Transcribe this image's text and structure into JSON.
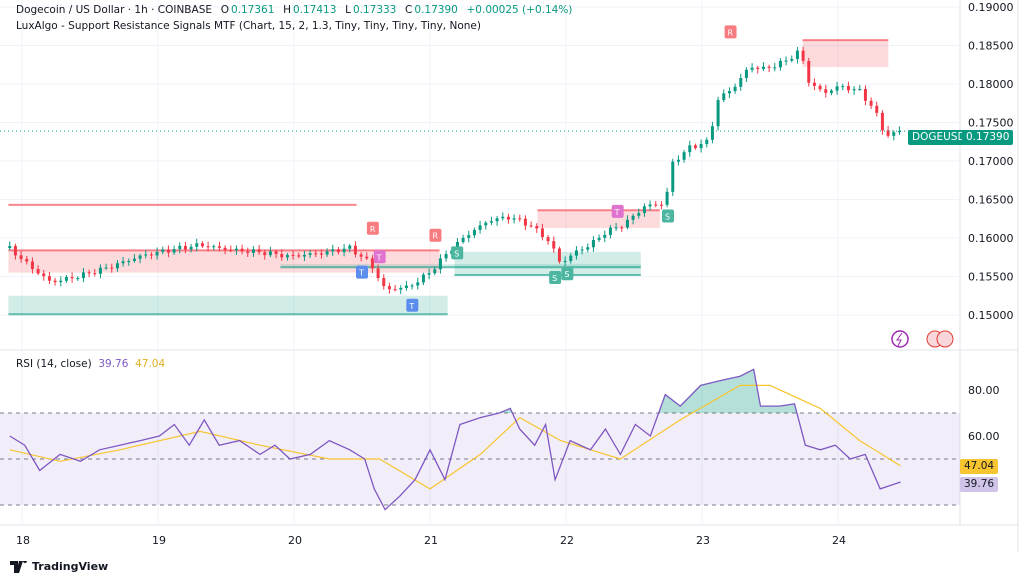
{
  "header": {
    "symbol_title": "Dogecoin / US Dollar · 1h · COINBASE",
    "open_label": "O",
    "open": "0.17361",
    "high_label": "H",
    "high": "0.17413",
    "low_label": "L",
    "low": "0.17333",
    "close_label": "C",
    "close": "0.17390",
    "change": "+0.00025 (+0.14%)",
    "indicator": "LuxAlgo - Support Resistance Signals MTF (Chart, 15, 2, 1.3, Tiny, Tiny, Tiny, Tiny, None)"
  },
  "price_tag": {
    "symbol": "DOGEUSD",
    "price": "0.17390"
  },
  "rsi": {
    "title": "RSI (14, close)",
    "value": "39.76",
    "ma_value": "47.04"
  },
  "branding": {
    "name": "TradingView"
  },
  "colors": {
    "up": "#089981",
    "down": "#f23645",
    "rsi": "#7e57c2",
    "rsi_ma": "#f7c530",
    "resistance": "#f23645",
    "support": "#089981"
  },
  "chart_data": [
    {
      "type": "candlestick",
      "title": "Dogecoin / US Dollar · 1h · COINBASE",
      "x_ticks": [
        "18",
        "19",
        "20",
        "21",
        "22",
        "23",
        "24"
      ],
      "y_ticks": [
        "0.15000",
        "0.15500",
        "0.16000",
        "0.16500",
        "0.17000",
        "0.17500",
        "0.18000",
        "0.18500",
        "0.19000"
      ],
      "ylim": [
        0.146,
        0.19
      ],
      "grid": true,
      "close_path": [
        [
          17.91,
          0.1587
        ],
        [
          18.06,
          0.1565
        ],
        [
          18.21,
          0.1545
        ],
        [
          18.43,
          0.1552
        ],
        [
          18.65,
          0.1561
        ],
        [
          18.87,
          0.1574
        ],
        [
          19.09,
          0.1584
        ],
        [
          19.31,
          0.1593
        ],
        [
          19.53,
          0.1587
        ],
        [
          19.75,
          0.1582
        ],
        [
          19.97,
          0.1574
        ],
        [
          20.19,
          0.1578
        ],
        [
          20.41,
          0.1587
        ],
        [
          20.56,
          0.1569
        ],
        [
          20.67,
          0.1535
        ],
        [
          20.85,
          0.1539
        ],
        [
          21.0,
          0.1556
        ],
        [
          21.15,
          0.1584
        ],
        [
          21.29,
          0.1604
        ],
        [
          21.44,
          0.1621
        ],
        [
          21.59,
          0.1626
        ],
        [
          21.74,
          0.1617
        ],
        [
          21.88,
          0.1597
        ],
        [
          21.96,
          0.1569
        ],
        [
          22.07,
          0.1584
        ],
        [
          22.18,
          0.1593
        ],
        [
          22.29,
          0.1608
        ],
        [
          22.43,
          0.1617
        ],
        [
          22.58,
          0.1639
        ],
        [
          22.73,
          0.1643
        ],
        [
          22.78,
          0.1695
        ],
        [
          22.91,
          0.1717
        ],
        [
          23.06,
          0.1727
        ],
        [
          23.1,
          0.1779
        ],
        [
          23.24,
          0.1799
        ],
        [
          23.35,
          0.1825
        ],
        [
          23.46,
          0.1821
        ],
        [
          23.61,
          0.1829
        ],
        [
          23.72,
          0.1842
        ],
        [
          23.79,
          0.1799
        ],
        [
          23.9,
          0.1786
        ],
        [
          24.01,
          0.1795
        ],
        [
          24.16,
          0.179
        ],
        [
          24.27,
          0.1766
        ],
        [
          24.35,
          0.1734
        ],
        [
          24.46,
          0.1739
        ]
      ],
      "levels": [
        {
          "kind": "resistance",
          "from": 17.9,
          "to": 20.46,
          "price": 0.1643
        }
      ],
      "zones": [
        {
          "kind": "resistance",
          "from": 17.9,
          "to": 21.07,
          "top": 0.1584,
          "bottom": 0.1555
        },
        {
          "kind": "support",
          "from": 17.9,
          "to": 21.13,
          "top": 0.1525,
          "bottom": 0.1501
        },
        {
          "kind": "support",
          "from": 19.9,
          "to": 22.55,
          "top": 0.1566,
          "bottom": 0.1562
        },
        {
          "kind": "support",
          "from": 21.18,
          "to": 22.55,
          "top": 0.1582,
          "bottom": 0.1552
        },
        {
          "kind": "resistance",
          "from": 21.79,
          "to": 22.69,
          "top": 0.1636,
          "bottom": 0.1613
        },
        {
          "kind": "resistance",
          "from": 23.74,
          "to": 24.37,
          "top": 0.1857,
          "bottom": 0.1822
        }
      ],
      "signals": [
        {
          "label": "R",
          "kind": "resistance",
          "x": 20.58,
          "price": 0.1612
        },
        {
          "label": "R",
          "kind": "resistance",
          "x": 21.04,
          "price": 0.1603
        },
        {
          "label": "R",
          "kind": "resistance",
          "x": 23.21,
          "price": 0.1867
        },
        {
          "label": "T",
          "kind": "test",
          "x": 20.5,
          "price": 0.1555
        },
        {
          "label": "T",
          "kind": "test",
          "x": 20.87,
          "price": 0.1512
        },
        {
          "label": "T",
          "kind": "retest",
          "x": 20.63,
          "price": 0.1575
        },
        {
          "label": "T",
          "kind": "retest",
          "x": 22.38,
          "price": 0.1634
        },
        {
          "label": "S",
          "kind": "support",
          "x": 21.2,
          "price": 0.158
        },
        {
          "label": "S",
          "kind": "support",
          "x": 21.92,
          "price": 0.1548
        },
        {
          "label": "S",
          "kind": "support",
          "x": 22.01,
          "price": 0.1553
        },
        {
          "label": "S",
          "kind": "support",
          "x": 22.75,
          "price": 0.1628
        }
      ]
    },
    {
      "type": "line",
      "title": "RSI (14, close)",
      "y_ticks": [
        "60.00",
        "80.00"
      ],
      "bands": [
        70,
        50,
        30
      ],
      "series": [
        {
          "name": "RSI",
          "values": [
            [
              17.91,
              60
            ],
            [
              18.02,
              56
            ],
            [
              18.13,
              45
            ],
            [
              18.28,
              52
            ],
            [
              18.43,
              49
            ],
            [
              18.57,
              54
            ],
            [
              18.72,
              56
            ],
            [
              18.87,
              58
            ],
            [
              19.01,
              60
            ],
            [
              19.12,
              65
            ],
            [
              19.23,
              56
            ],
            [
              19.34,
              67
            ],
            [
              19.45,
              56
            ],
            [
              19.6,
              58
            ],
            [
              19.75,
              52
            ],
            [
              19.86,
              56
            ],
            [
              19.97,
              50
            ],
            [
              20.12,
              52
            ],
            [
              20.26,
              58
            ],
            [
              20.41,
              54
            ],
            [
              20.52,
              50
            ],
            [
              20.59,
              37
            ],
            [
              20.67,
              28
            ],
            [
              20.78,
              34
            ],
            [
              20.89,
              41
            ],
            [
              21.0,
              54
            ],
            [
              21.11,
              41
            ],
            [
              21.22,
              65
            ],
            [
              21.37,
              68
            ],
            [
              21.51,
              70
            ],
            [
              21.59,
              72
            ],
            [
              21.66,
              63
            ],
            [
              21.77,
              56
            ],
            [
              21.85,
              65
            ],
            [
              21.92,
              41
            ],
            [
              22.03,
              58
            ],
            [
              22.18,
              54
            ],
            [
              22.29,
              63
            ],
            [
              22.4,
              52
            ],
            [
              22.51,
              65
            ],
            [
              22.62,
              60
            ],
            [
              22.73,
              78
            ],
            [
              22.84,
              73
            ],
            [
              22.99,
              82
            ],
            [
              23.13,
              84
            ],
            [
              23.28,
              86
            ],
            [
              23.38,
              89
            ],
            [
              23.43,
              73
            ],
            [
              23.57,
              73
            ],
            [
              23.68,
              74
            ],
            [
              23.76,
              56
            ],
            [
              23.87,
              54
            ],
            [
              23.98,
              56
            ],
            [
              24.09,
              50
            ],
            [
              24.2,
              52
            ],
            [
              24.31,
              37
            ],
            [
              24.46,
              40
            ]
          ]
        },
        {
          "name": "RSI MA",
          "values": [
            [
              17.91,
              54
            ],
            [
              18.28,
              49
            ],
            [
              18.72,
              54
            ],
            [
              19.31,
              62
            ],
            [
              19.75,
              56
            ],
            [
              20.26,
              50
            ],
            [
              20.63,
              50
            ],
            [
              21.0,
              37
            ],
            [
              21.37,
              52
            ],
            [
              21.66,
              68
            ],
            [
              21.96,
              58
            ],
            [
              22.4,
              50
            ],
            [
              22.84,
              67
            ],
            [
              23.28,
              82
            ],
            [
              23.5,
              82
            ],
            [
              23.87,
              72
            ],
            [
              24.16,
              58
            ],
            [
              24.46,
              47
            ]
          ]
        }
      ]
    }
  ]
}
